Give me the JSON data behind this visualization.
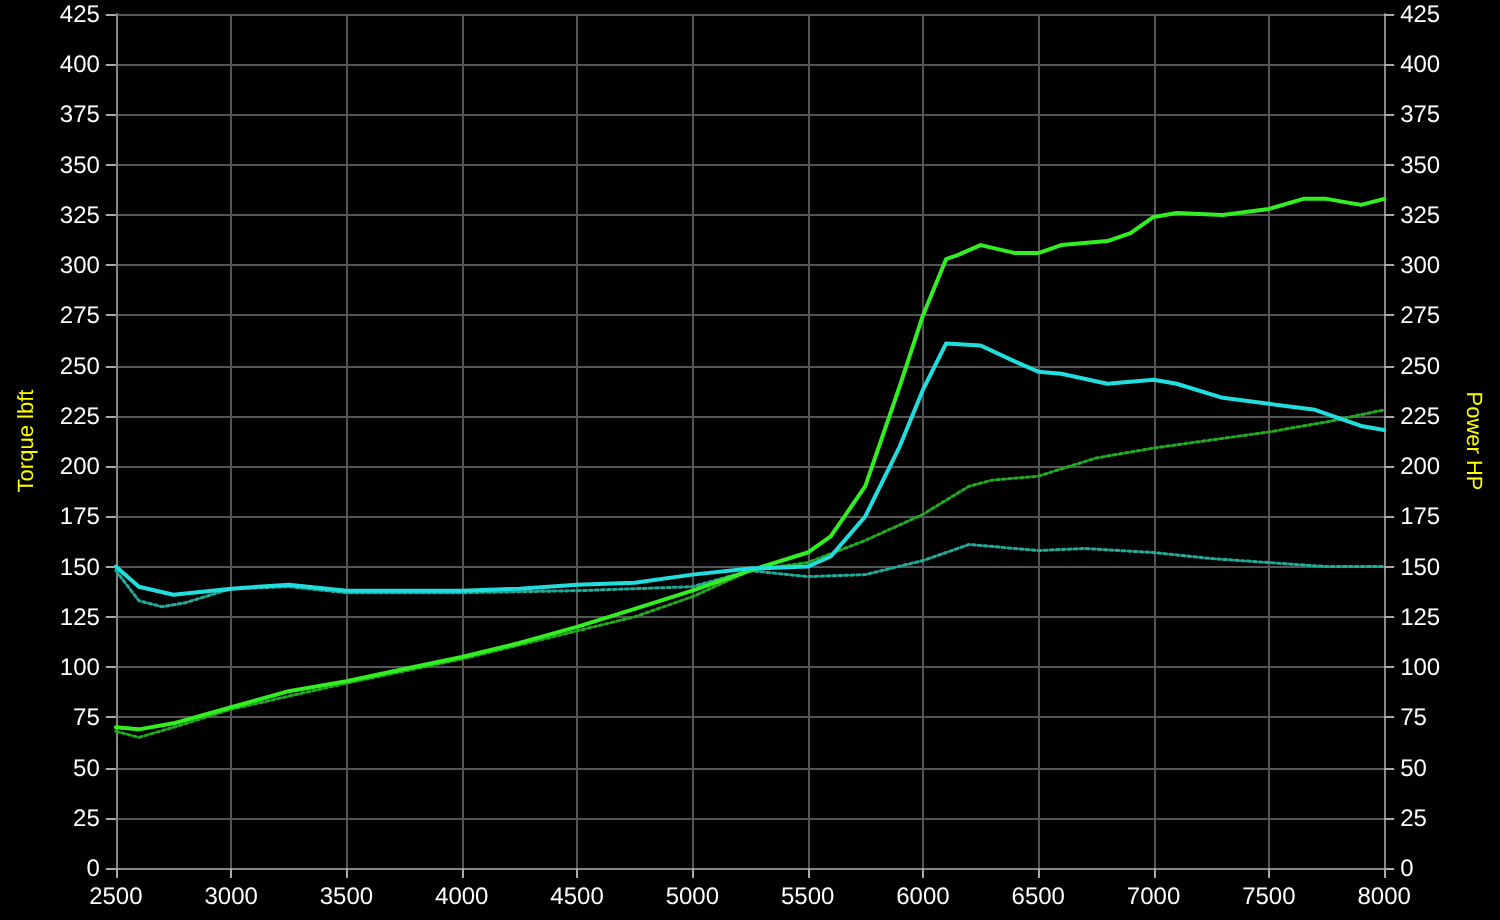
{
  "chart_data": {
    "type": "line",
    "ylabel": "Torque lbft",
    "y2label": "Power HP",
    "xlim": [
      2500,
      8000
    ],
    "xticks": [
      2500,
      3000,
      3500,
      4000,
      4500,
      5000,
      5500,
      6000,
      6500,
      7000,
      7500,
      8000
    ],
    "ylim": [
      0,
      425
    ],
    "yticks": [
      0,
      25,
      50,
      75,
      100,
      125,
      150,
      175,
      200,
      225,
      250,
      275,
      300,
      325,
      350,
      375,
      400,
      425
    ],
    "y2lim": [
      0,
      425
    ],
    "y2ticks": [
      0,
      25,
      50,
      75,
      100,
      125,
      150,
      175,
      200,
      225,
      250,
      275,
      300,
      325,
      350,
      375,
      400,
      425
    ],
    "grid": true,
    "marker": "none",
    "series": [
      {
        "color": "#33ee22",
        "line_style": "solid",
        "x": [
          2500,
          2600,
          2750,
          3000,
          3250,
          3500,
          3750,
          4000,
          4250,
          4500,
          4750,
          5000,
          5250,
          5500,
          5600,
          5750,
          5900,
          6000,
          6100,
          6150,
          6250,
          6400,
          6500,
          6600,
          6800,
          6900,
          7000,
          7100,
          7300,
          7500,
          7650,
          7750,
          7900,
          8000
        ],
        "values": [
          70,
          69,
          72,
          80,
          88,
          93,
          99,
          105,
          112,
          120,
          129,
          138,
          148,
          157,
          165,
          190,
          240,
          275,
          303,
          305,
          310,
          306,
          306,
          310,
          312,
          316,
          324,
          326,
          325,
          328,
          333,
          333,
          330,
          333
        ]
      },
      {
        "color": "#22dddd",
        "line_style": "solid",
        "x": [
          2500,
          2600,
          2750,
          3000,
          3250,
          3500,
          3750,
          4000,
          4250,
          4500,
          4750,
          5000,
          5250,
          5500,
          5600,
          5750,
          5900,
          6000,
          6100,
          6250,
          6400,
          6500,
          6600,
          6800,
          7000,
          7100,
          7300,
          7500,
          7700,
          7900,
          8000
        ],
        "values": [
          150,
          140,
          136,
          139,
          141,
          138,
          138,
          138,
          139,
          141,
          142,
          146,
          149,
          150,
          155,
          175,
          210,
          238,
          261,
          260,
          252,
          247,
          246,
          241,
          243,
          241,
          234,
          231,
          228,
          220,
          218
        ]
      },
      {
        "color": "#22aa22",
        "line_style": "dotted",
        "x": [
          2500,
          2600,
          2750,
          3000,
          3500,
          4000,
          4500,
          4750,
          5000,
          5250,
          5500,
          5750,
          6000,
          6200,
          6300,
          6500,
          6750,
          7000,
          7500,
          7750,
          8000
        ],
        "values": [
          68,
          65,
          70,
          79,
          92,
          104,
          118,
          125,
          135,
          148,
          152,
          163,
          176,
          190,
          193,
          195,
          204,
          209,
          217,
          222,
          228
        ]
      },
      {
        "color": "#22aa99",
        "line_style": "dotted",
        "x": [
          2500,
          2600,
          2700,
          2800,
          3000,
          3250,
          3500,
          4000,
          4500,
          5000,
          5250,
          5500,
          5750,
          6000,
          6200,
          6500,
          6700,
          7000,
          7250,
          7500,
          7750,
          8000
        ],
        "values": [
          148,
          133,
          130,
          132,
          139,
          140,
          137,
          137,
          138,
          140,
          148,
          145,
          146,
          153,
          161,
          158,
          159,
          157,
          154,
          152,
          150,
          150
        ]
      }
    ]
  }
}
